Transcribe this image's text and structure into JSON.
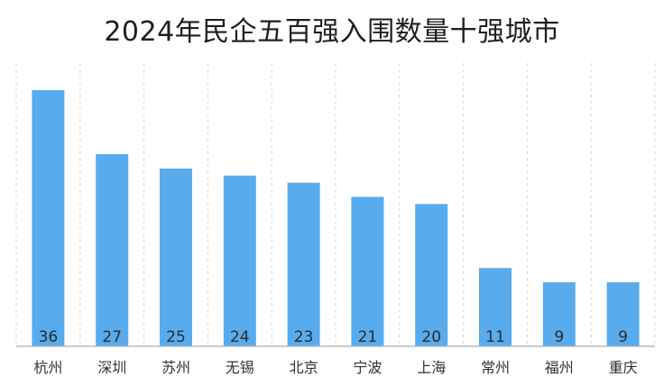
{
  "chart_data": {
    "type": "bar",
    "title": "2024年民企五百强入围数量十强城市",
    "categories": [
      "杭州",
      "深圳",
      "苏州",
      "无锡",
      "北京",
      "宁波",
      "上海",
      "常州",
      "福州",
      "重庆"
    ],
    "values": [
      36,
      27,
      25,
      24,
      23,
      21,
      20,
      11,
      9,
      9
    ],
    "xlabel": "",
    "ylabel": "",
    "ylim": [
      0,
      36
    ],
    "grid": "vertical dashed",
    "legend": "none",
    "bar_color": "#58ACEE",
    "grid_color": "#D5D5D5",
    "axis_color": "#B8B8B8"
  }
}
